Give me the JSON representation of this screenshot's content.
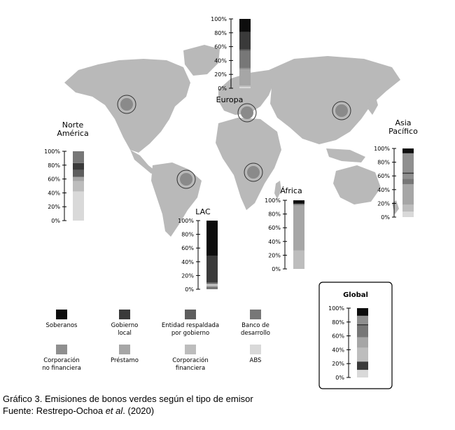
{
  "chart_data": {
    "type": "bar",
    "subtype": "stacked-100-percent-on-map",
    "categories_stack_order_bottom_to_top": [
      "ABS",
      "Corporación financiera",
      "Préstamo",
      "Corporación no financiera",
      "Banco de desarrollo",
      "Entidad respaldada por gobierno",
      "Gobierno local",
      "Soberanos"
    ],
    "legend": [
      {
        "key": "soberanos",
        "lines": [
          "Soberanos"
        ],
        "color": "#0d0d0d"
      },
      {
        "key": "gobierno_local",
        "lines": [
          "Gobierno",
          "local"
        ],
        "color": "#3a3a3a"
      },
      {
        "key": "entidad_respaldada",
        "lines": [
          "Entidad respaldada",
          "por gobierno"
        ],
        "color": "#5e5e5e"
      },
      {
        "key": "banco_desarrollo",
        "lines": [
          "Banco de",
          "desarrollo"
        ],
        "color": "#777777"
      },
      {
        "key": "corp_no_financiera",
        "lines": [
          "Corporación",
          "no financiera"
        ],
        "color": "#8f8f8f"
      },
      {
        "key": "prestamo",
        "lines": [
          "Préstamo"
        ],
        "color": "#a6a6a6"
      },
      {
        "key": "corp_financiera",
        "lines": [
          "Corporación",
          "financiera"
        ],
        "color": "#bdbdbd"
      },
      {
        "key": "abs",
        "lines": [
          "ABS"
        ],
        "color": "#d9d9d9"
      }
    ],
    "y_ticks": [
      "0%",
      "20%",
      "40%",
      "60%",
      "80%",
      "100%"
    ],
    "ylim": [
      0,
      100
    ],
    "regions": [
      {
        "key": "europa",
        "lines": [
          "Europa"
        ],
        "segments": [
          {
            "cat": "abs",
            "value": 2
          },
          {
            "cat": "corp_financiera",
            "value": 2
          },
          {
            "cat": "prestamo",
            "value": 23
          },
          {
            "cat": "corp_no_financiera",
            "value": 2
          },
          {
            "cat": "banco_desarrollo",
            "value": 25
          },
          {
            "cat": "entidad_respaldada",
            "value": 2
          },
          {
            "cat": "gobierno_local",
            "value": 25
          },
          {
            "cat": "soberanos",
            "value": 19
          }
        ]
      },
      {
        "key": "norte_america",
        "lines": [
          "Norte",
          "América"
        ],
        "segments": [
          {
            "cat": "abs",
            "value": 42
          },
          {
            "cat": "corp_financiera",
            "value": 15
          },
          {
            "cat": "prestamo",
            "value": 6
          },
          {
            "cat": "entidad_respaldada",
            "value": 10
          },
          {
            "cat": "gobierno_local",
            "value": 10
          },
          {
            "cat": "banco_desarrollo",
            "value": 17
          }
        ]
      },
      {
        "key": "lac",
        "lines": [
          "LAC"
        ],
        "segments": [
          {
            "cat": "banco_desarrollo",
            "value": 4
          },
          {
            "cat": "corp_financiera",
            "value": 4
          },
          {
            "cat": "entidad_respaldada",
            "value": 2
          },
          {
            "cat": "gobierno_local",
            "value": 39
          },
          {
            "cat": "soberanos",
            "value": 51
          }
        ]
      },
      {
        "key": "africa",
        "lines": [
          "África"
        ],
        "segments": [
          {
            "cat": "corp_financiera",
            "value": 27
          },
          {
            "cat": "prestamo",
            "value": 66
          },
          {
            "cat": "banco_desarrollo",
            "value": 2
          },
          {
            "cat": "soberanos",
            "value": 5
          }
        ]
      },
      {
        "key": "asia_pacifico",
        "lines": [
          "Asia",
          "Pacífico"
        ],
        "segments": [
          {
            "cat": "abs",
            "value": 8
          },
          {
            "cat": "corp_financiera",
            "value": 10
          },
          {
            "cat": "prestamo",
            "value": 30
          },
          {
            "cat": "banco_desarrollo",
            "value": 8
          },
          {
            "cat": "corp_no_financiera",
            "value": 7
          },
          {
            "cat": "gobierno_local",
            "value": 2
          },
          {
            "cat": "corp_no_financiera",
            "value": 28
          },
          {
            "cat": "soberanos",
            "value": 7
          }
        ]
      },
      {
        "key": "global",
        "lines": [
          "Global"
        ],
        "segments": [
          {
            "cat": "abs",
            "value": 11
          },
          {
            "cat": "gobierno_local",
            "value": 12
          },
          {
            "cat": "corp_financiera",
            "value": 20
          },
          {
            "cat": "prestamo",
            "value": 15
          },
          {
            "cat": "banco_desarrollo",
            "value": 17
          },
          {
            "cat": "gobierno_local",
            "value": 2
          },
          {
            "cat": "corp_no_financiera",
            "value": 12
          },
          {
            "cat": "soberanos",
            "value": 11
          }
        ]
      }
    ]
  },
  "caption": {
    "line1": "Gráfico 3. Emisiones de bonos verdes según el tipo de emisor",
    "line2_prefix": "Fuente: Restrepo-Ochoa ",
    "line2_italic": "et al",
    "line2_suffix": ". (2020)"
  },
  "colors": {
    "map_land": "#b9b9b9",
    "marker": "#8a8a8a"
  }
}
